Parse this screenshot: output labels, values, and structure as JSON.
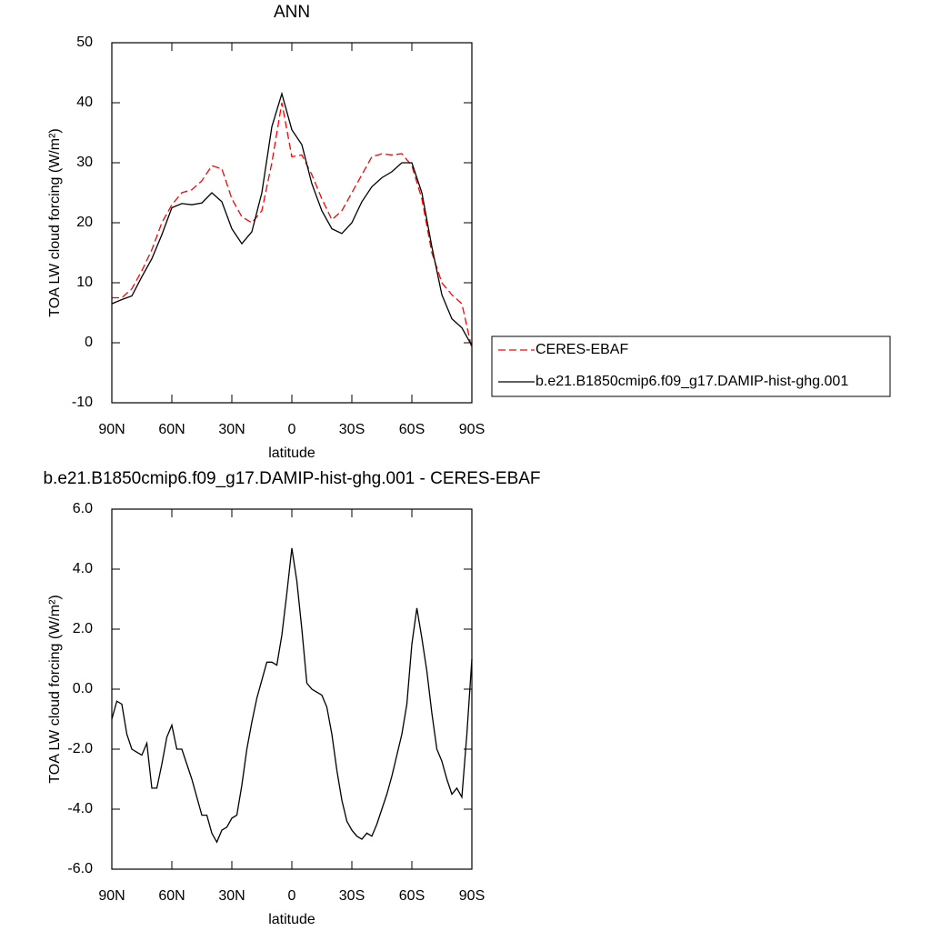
{
  "chart_data": [
    {
      "type": "line",
      "title": "ANN",
      "x_label": "latitude",
      "y_label": "TOA LW cloud forcing (W/m²)",
      "x": [
        90,
        85,
        80,
        75,
        70,
        65,
        60,
        55,
        50,
        45,
        40,
        35,
        30,
        25,
        20,
        15,
        10,
        5,
        0,
        -5,
        -10,
        -15,
        -20,
        -25,
        -30,
        -35,
        -40,
        -45,
        -50,
        -55,
        -60,
        -65,
        -70,
        -75,
        -80,
        -85,
        -90
      ],
      "series": [
        {
          "name": "CERES-EBAF",
          "color": "#ff0000",
          "dashed": true,
          "values": [
            7.5,
            7.5,
            9,
            12,
            15.5,
            20,
            23,
            25,
            25.5,
            27,
            29.5,
            29,
            24,
            21,
            20,
            22,
            30,
            40,
            31,
            31.3,
            28,
            24,
            20.5,
            22,
            25,
            28,
            31,
            31.5,
            31.3,
            31.5,
            29.5,
            24,
            15,
            10,
            8,
            6.5,
            -1
          ]
        },
        {
          "name": "b.e21.B1850cmip6.f09_g17.DAMIP-hist-ghg.001",
          "color": "#000000",
          "dashed": false,
          "values": [
            6.5,
            7.2,
            7.8,
            11,
            14,
            18,
            22.5,
            23.2,
            23,
            23.3,
            25,
            23.5,
            19,
            16.5,
            18.5,
            25,
            36,
            41.5,
            35.5,
            33,
            26.5,
            22,
            19,
            18.2,
            20,
            23.5,
            26,
            27.5,
            28.5,
            30,
            30,
            25,
            16,
            8,
            4,
            2.5,
            -0.5
          ]
        }
      ],
      "xlim": [
        90,
        -90
      ],
      "xticks": [
        {
          "value": 90,
          "label": "90N"
        },
        {
          "value": 60,
          "label": "60N"
        },
        {
          "value": 30,
          "label": "30N"
        },
        0,
        {
          "value": -30,
          "label": "30S"
        },
        {
          "value": -60,
          "label": "60S"
        },
        {
          "value": -90,
          "label": "90S"
        }
      ],
      "ylim": [
        -10,
        50
      ],
      "yticks": [
        -10,
        0,
        10,
        20,
        30,
        40,
        50
      ],
      "legend": "right"
    },
    {
      "type": "line",
      "title": "b.e21.B1850cmip6.f09_g17.DAMIP-hist-ghg.001 - CERES-EBAF",
      "x_label": "latitude",
      "y_label": "TOA LW cloud forcing (W/m²)",
      "x": [
        90,
        87.5,
        85,
        82.5,
        80,
        77.5,
        75,
        72.5,
        70,
        67.5,
        65,
        62.5,
        60,
        57.5,
        55,
        52.5,
        50,
        47.5,
        45,
        42.5,
        40,
        37.5,
        35,
        32.5,
        30,
        27.5,
        25,
        22.5,
        20,
        17.5,
        15,
        12.5,
        10,
        7.5,
        5,
        2.5,
        0,
        -2.5,
        -5,
        -7.5,
        -10,
        -12.5,
        -15,
        -17.5,
        -20,
        -22.5,
        -25,
        -27.5,
        -30,
        -32.5,
        -35,
        -37.5,
        -40,
        -42.5,
        -45,
        -47.5,
        -50,
        -52.5,
        -55,
        -57.5,
        -60,
        -62.5,
        -65,
        -67.5,
        -70,
        -72.5,
        -75,
        -77.5,
        -80,
        -82.5,
        -85,
        -87.5,
        -90
      ],
      "values": [
        -1.0,
        -0.4,
        -0.5,
        -1.5,
        -2.0,
        -2.1,
        -2.2,
        -1.8,
        -3.3,
        -3.3,
        -2.5,
        -1.6,
        -1.2,
        -2.0,
        -2.0,
        -2.5,
        -3.0,
        -3.6,
        -4.2,
        -4.2,
        -4.8,
        -5.1,
        -4.7,
        -4.6,
        -4.3,
        -4.2,
        -3.2,
        -2.0,
        -1.1,
        -0.3,
        0.3,
        0.9,
        0.9,
        0.8,
        1.8,
        3.2,
        4.7,
        3.6,
        2.0,
        0.2,
        0.0,
        -0.1,
        -0.2,
        -0.6,
        -1.5,
        -2.7,
        -3.7,
        -4.4,
        -4.7,
        -4.9,
        -5.0,
        -4.8,
        -4.9,
        -4.5,
        -4.0,
        -3.5,
        -2.9,
        -2.2,
        -1.5,
        -0.5,
        1.5,
        2.7,
        1.7,
        0.6,
        -0.8,
        -2.0,
        -2.4,
        -3.0,
        -3.5,
        -3.3,
        -3.6,
        -1.5,
        1.0
      ],
      "color": "#000000",
      "xlim": [
        90,
        -90
      ],
      "xticks": [
        {
          "value": 90,
          "label": "90N"
        },
        {
          "value": 60,
          "label": "60N"
        },
        {
          "value": 30,
          "label": "30N"
        },
        0,
        {
          "value": -30,
          "label": "30S"
        },
        {
          "value": -60,
          "label": "60S"
        },
        {
          "value": -90,
          "label": "90S"
        }
      ],
      "ylim": [
        -6,
        6
      ],
      "yticks": [
        {
          "value": -6,
          "label": "-6.0"
        },
        {
          "value": -4,
          "label": "-4.0"
        },
        {
          "value": -2,
          "label": "-2.0"
        },
        {
          "value": 0,
          "label": "0.0"
        },
        {
          "value": 2,
          "label": "2.0"
        },
        {
          "value": 4,
          "label": "4.0"
        },
        {
          "value": 6,
          "label": "6.0"
        }
      ]
    }
  ]
}
